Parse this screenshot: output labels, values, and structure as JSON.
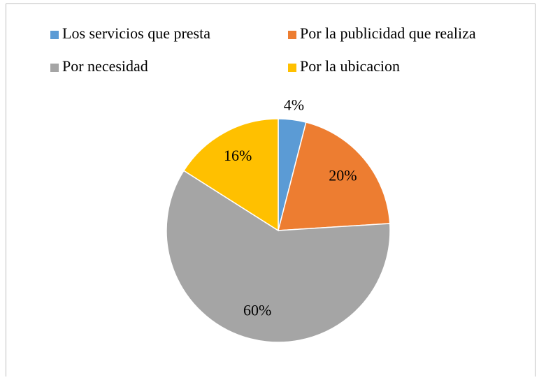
{
  "chart_data": {
    "type": "pie",
    "categories": [
      "Los servicios que presta",
      "Por la publicidad que realiza",
      "Por necesidad",
      "Por la ubicacion"
    ],
    "values": [
      4,
      20,
      60,
      16
    ],
    "value_labels": [
      "4%",
      "20%",
      "60%",
      "16%"
    ],
    "colors": [
      "#5b9bd5",
      "#ed7d31",
      "#a5a5a5",
      "#ffc000"
    ],
    "legend": "top"
  }
}
